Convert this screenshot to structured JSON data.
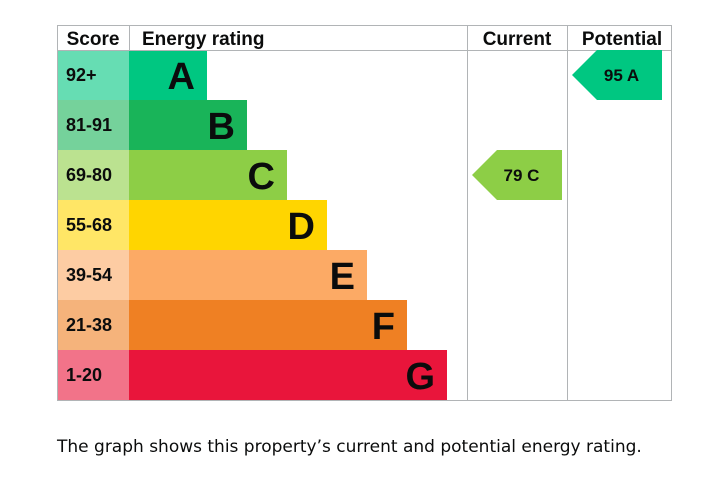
{
  "headers": {
    "score": "Score",
    "rating": "Energy rating",
    "current": "Current",
    "potential": "Potential"
  },
  "chart_data": {
    "type": "bar",
    "title": "",
    "categories": [
      "A",
      "B",
      "C",
      "D",
      "E",
      "F",
      "G"
    ],
    "score_ranges": [
      "92+",
      "81-91",
      "69-80",
      "55-68",
      "39-54",
      "21-38",
      "1-20"
    ],
    "band_colors": [
      "#00c781",
      "#19b459",
      "#8dce46",
      "#ffd500",
      "#fcaa65",
      "#ef8023",
      "#e9153b"
    ],
    "score_cell_colors": [
      "#66ddb3",
      "#75d29b",
      "#bbe290",
      "#ffe666",
      "#fdcca3",
      "#f5b37b",
      "#f27389"
    ],
    "current": {
      "value": 79,
      "band": "C",
      "label": "79 C",
      "color": "#8dce46"
    },
    "potential": {
      "value": 95,
      "band": "A",
      "label": "95 A",
      "color": "#00c781"
    }
  },
  "caption": "The graph shows this property’s current and potential energy rating."
}
